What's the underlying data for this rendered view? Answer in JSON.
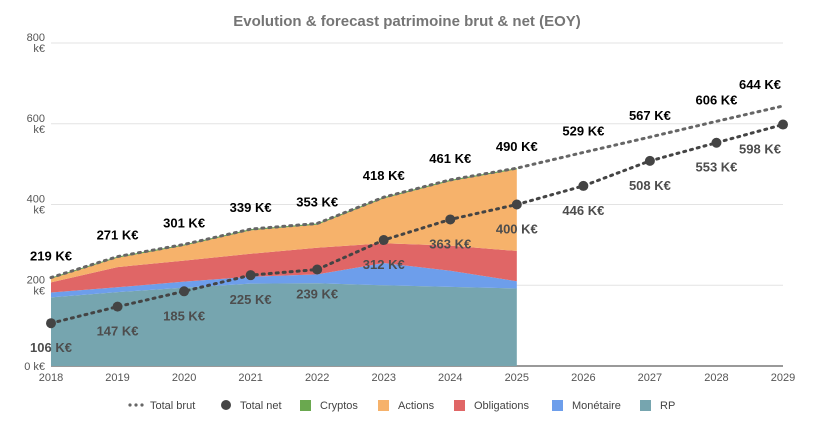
{
  "chart_data": {
    "type": "area",
    "title": "Evolution & forecast patrimoine brut & net (EOY)",
    "x": [
      "2018",
      "2019",
      "2020",
      "2021",
      "2022",
      "2023",
      "2024",
      "2025",
      "2026",
      "2027",
      "2028",
      "2029"
    ],
    "ylim": [
      0,
      800
    ],
    "y_ticks": [
      {
        "value": 0,
        "line1": "0 k€",
        "line2": ""
      },
      {
        "value": 200,
        "line1": "200",
        "line2": "k€"
      },
      {
        "value": 400,
        "line1": "400",
        "line2": "k€"
      },
      {
        "value": 600,
        "line1": "600",
        "line2": "k€"
      },
      {
        "value": 800,
        "line1": "800",
        "line2": "k€"
      }
    ],
    "stacked_series": [
      {
        "name": "RP",
        "color": "#76A5AF",
        "values": [
          170,
          183,
          194,
          204,
          205,
          200,
          196,
          192
        ]
      },
      {
        "name": "Monétaire",
        "color": "#6D9EEB",
        "values": [
          12,
          12,
          15,
          17,
          22,
          55,
          40,
          18
        ]
      },
      {
        "name": "Obligations",
        "color": "#E06666",
        "values": [
          25,
          50,
          52,
          57,
          66,
          49,
          62,
          75
        ]
      },
      {
        "name": "Actions",
        "color": "#F6B26B",
        "values": [
          9,
          23,
          37,
          58,
          57,
          111,
          160,
          202
        ]
      },
      {
        "name": "Cryptos",
        "color": "#6AA84F",
        "values": [
          3,
          3,
          3,
          3,
          3,
          3,
          3,
          3
        ]
      }
    ],
    "lines": [
      {
        "name": "Total brut",
        "color": "#666666",
        "style": "dotted",
        "values": [
          219,
          271,
          301,
          339,
          353,
          418,
          461,
          490,
          529,
          567,
          606,
          644
        ],
        "labels": [
          "219 K€",
          "271 K€",
          "301 K€",
          "339 K€",
          "353 K€",
          "418 K€",
          "461 K€",
          "490 K€",
          "529 K€",
          "567 K€",
          "606 K€",
          "644 K€"
        ],
        "label_color": "#000000"
      },
      {
        "name": "Total net",
        "color": "#444444",
        "style": "dotted-markers",
        "values": [
          106,
          147,
          185,
          225,
          239,
          312,
          363,
          400,
          446,
          508,
          553,
          598
        ],
        "labels": [
          "106 K€",
          "147 K€",
          "185 K€",
          "225 K€",
          "239 K€",
          "312 K€",
          "363 K€",
          "400 K€",
          "446 K€",
          "508 K€",
          "553 K€",
          "598 K€"
        ],
        "label_color": "#4d4d4d"
      }
    ],
    "legend": [
      {
        "name": "Total brut",
        "kind": "dots",
        "color": "#666666"
      },
      {
        "name": "Total net",
        "kind": "circle",
        "color": "#444444"
      },
      {
        "name": "Cryptos",
        "kind": "square",
        "color": "#6AA84F"
      },
      {
        "name": "Actions",
        "kind": "square",
        "color": "#F6B26B"
      },
      {
        "name": "Obligations",
        "kind": "square",
        "color": "#E06666"
      },
      {
        "name": "Monétaire",
        "kind": "square",
        "color": "#6D9EEB"
      },
      {
        "name": "RP",
        "kind": "square",
        "color": "#76A5AF"
      }
    ],
    "legend_position": "bottom",
    "grid": true
  }
}
